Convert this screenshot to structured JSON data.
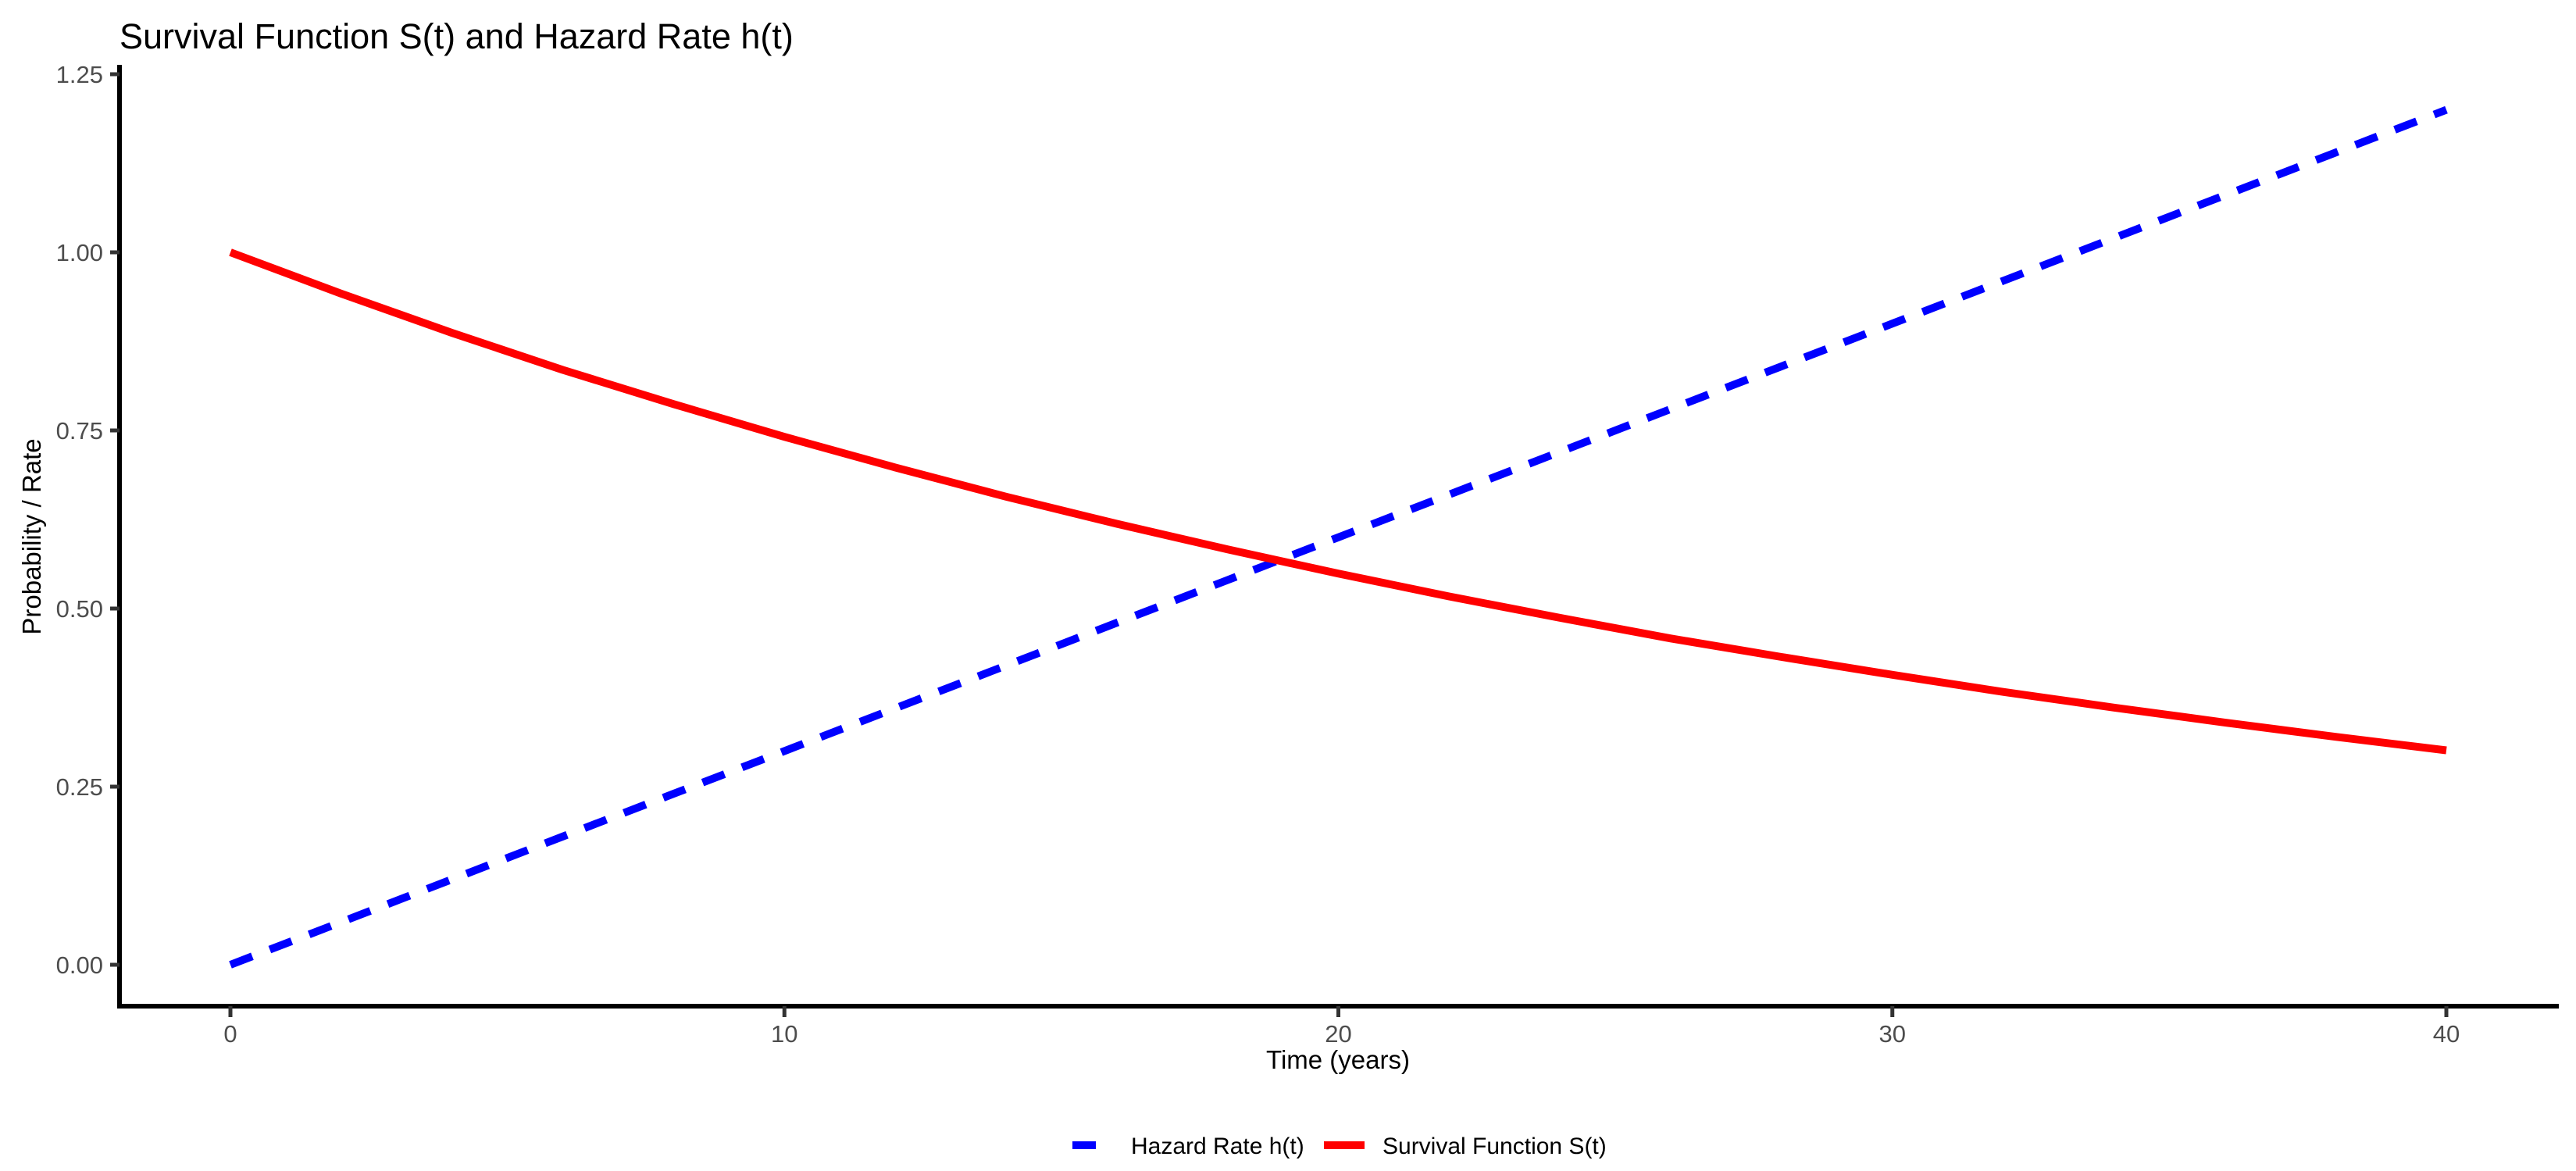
{
  "chart_data": {
    "type": "line",
    "title": "Survival Function S(t) and Hazard Rate h(t)",
    "xlabel": "Time (years)",
    "ylabel": "Probability / Rate",
    "xlim": [
      0,
      40
    ],
    "ylim": [
      0,
      1.25
    ],
    "grid": false,
    "legend_position": "bottom",
    "x_ticks": [
      0,
      10,
      20,
      30,
      40
    ],
    "x_tick_labels": [
      "0",
      "10",
      "20",
      "30",
      "40"
    ],
    "y_ticks": [
      0,
      0.25,
      0.5,
      0.75,
      1.0,
      1.25
    ],
    "y_tick_labels": [
      "0.00",
      "0.25",
      "0.50",
      "0.75",
      "1.00",
      "1.25"
    ],
    "x": [
      0,
      2,
      4,
      6,
      8,
      10,
      12,
      14,
      16,
      18,
      20,
      22,
      24,
      26,
      28,
      30,
      32,
      34,
      36,
      38,
      40
    ],
    "series": [
      {
        "name": "Hazard Rate h(t)",
        "color": "#0000FF",
        "line_style": "dashed",
        "values": [
          0.0,
          0.06,
          0.12,
          0.18,
          0.24,
          0.3,
          0.36,
          0.42,
          0.48,
          0.54,
          0.6,
          0.66,
          0.72,
          0.78,
          0.84,
          0.9,
          0.96,
          1.02,
          1.08,
          1.14,
          1.2
        ]
      },
      {
        "name": "Survival Function S(t)",
        "color": "#FF0000",
        "line_style": "solid",
        "values": [
          1.0,
          0.942,
          0.887,
          0.835,
          0.787,
          0.741,
          0.698,
          0.657,
          0.619,
          0.583,
          0.549,
          0.517,
          0.487,
          0.458,
          0.432,
          0.407,
          0.383,
          0.361,
          0.34,
          0.32,
          0.301
        ]
      }
    ],
    "style": {
      "axis_color": "#000000",
      "tick_color": "#333333",
      "tick_label_color": "#4D4D4D"
    }
  }
}
